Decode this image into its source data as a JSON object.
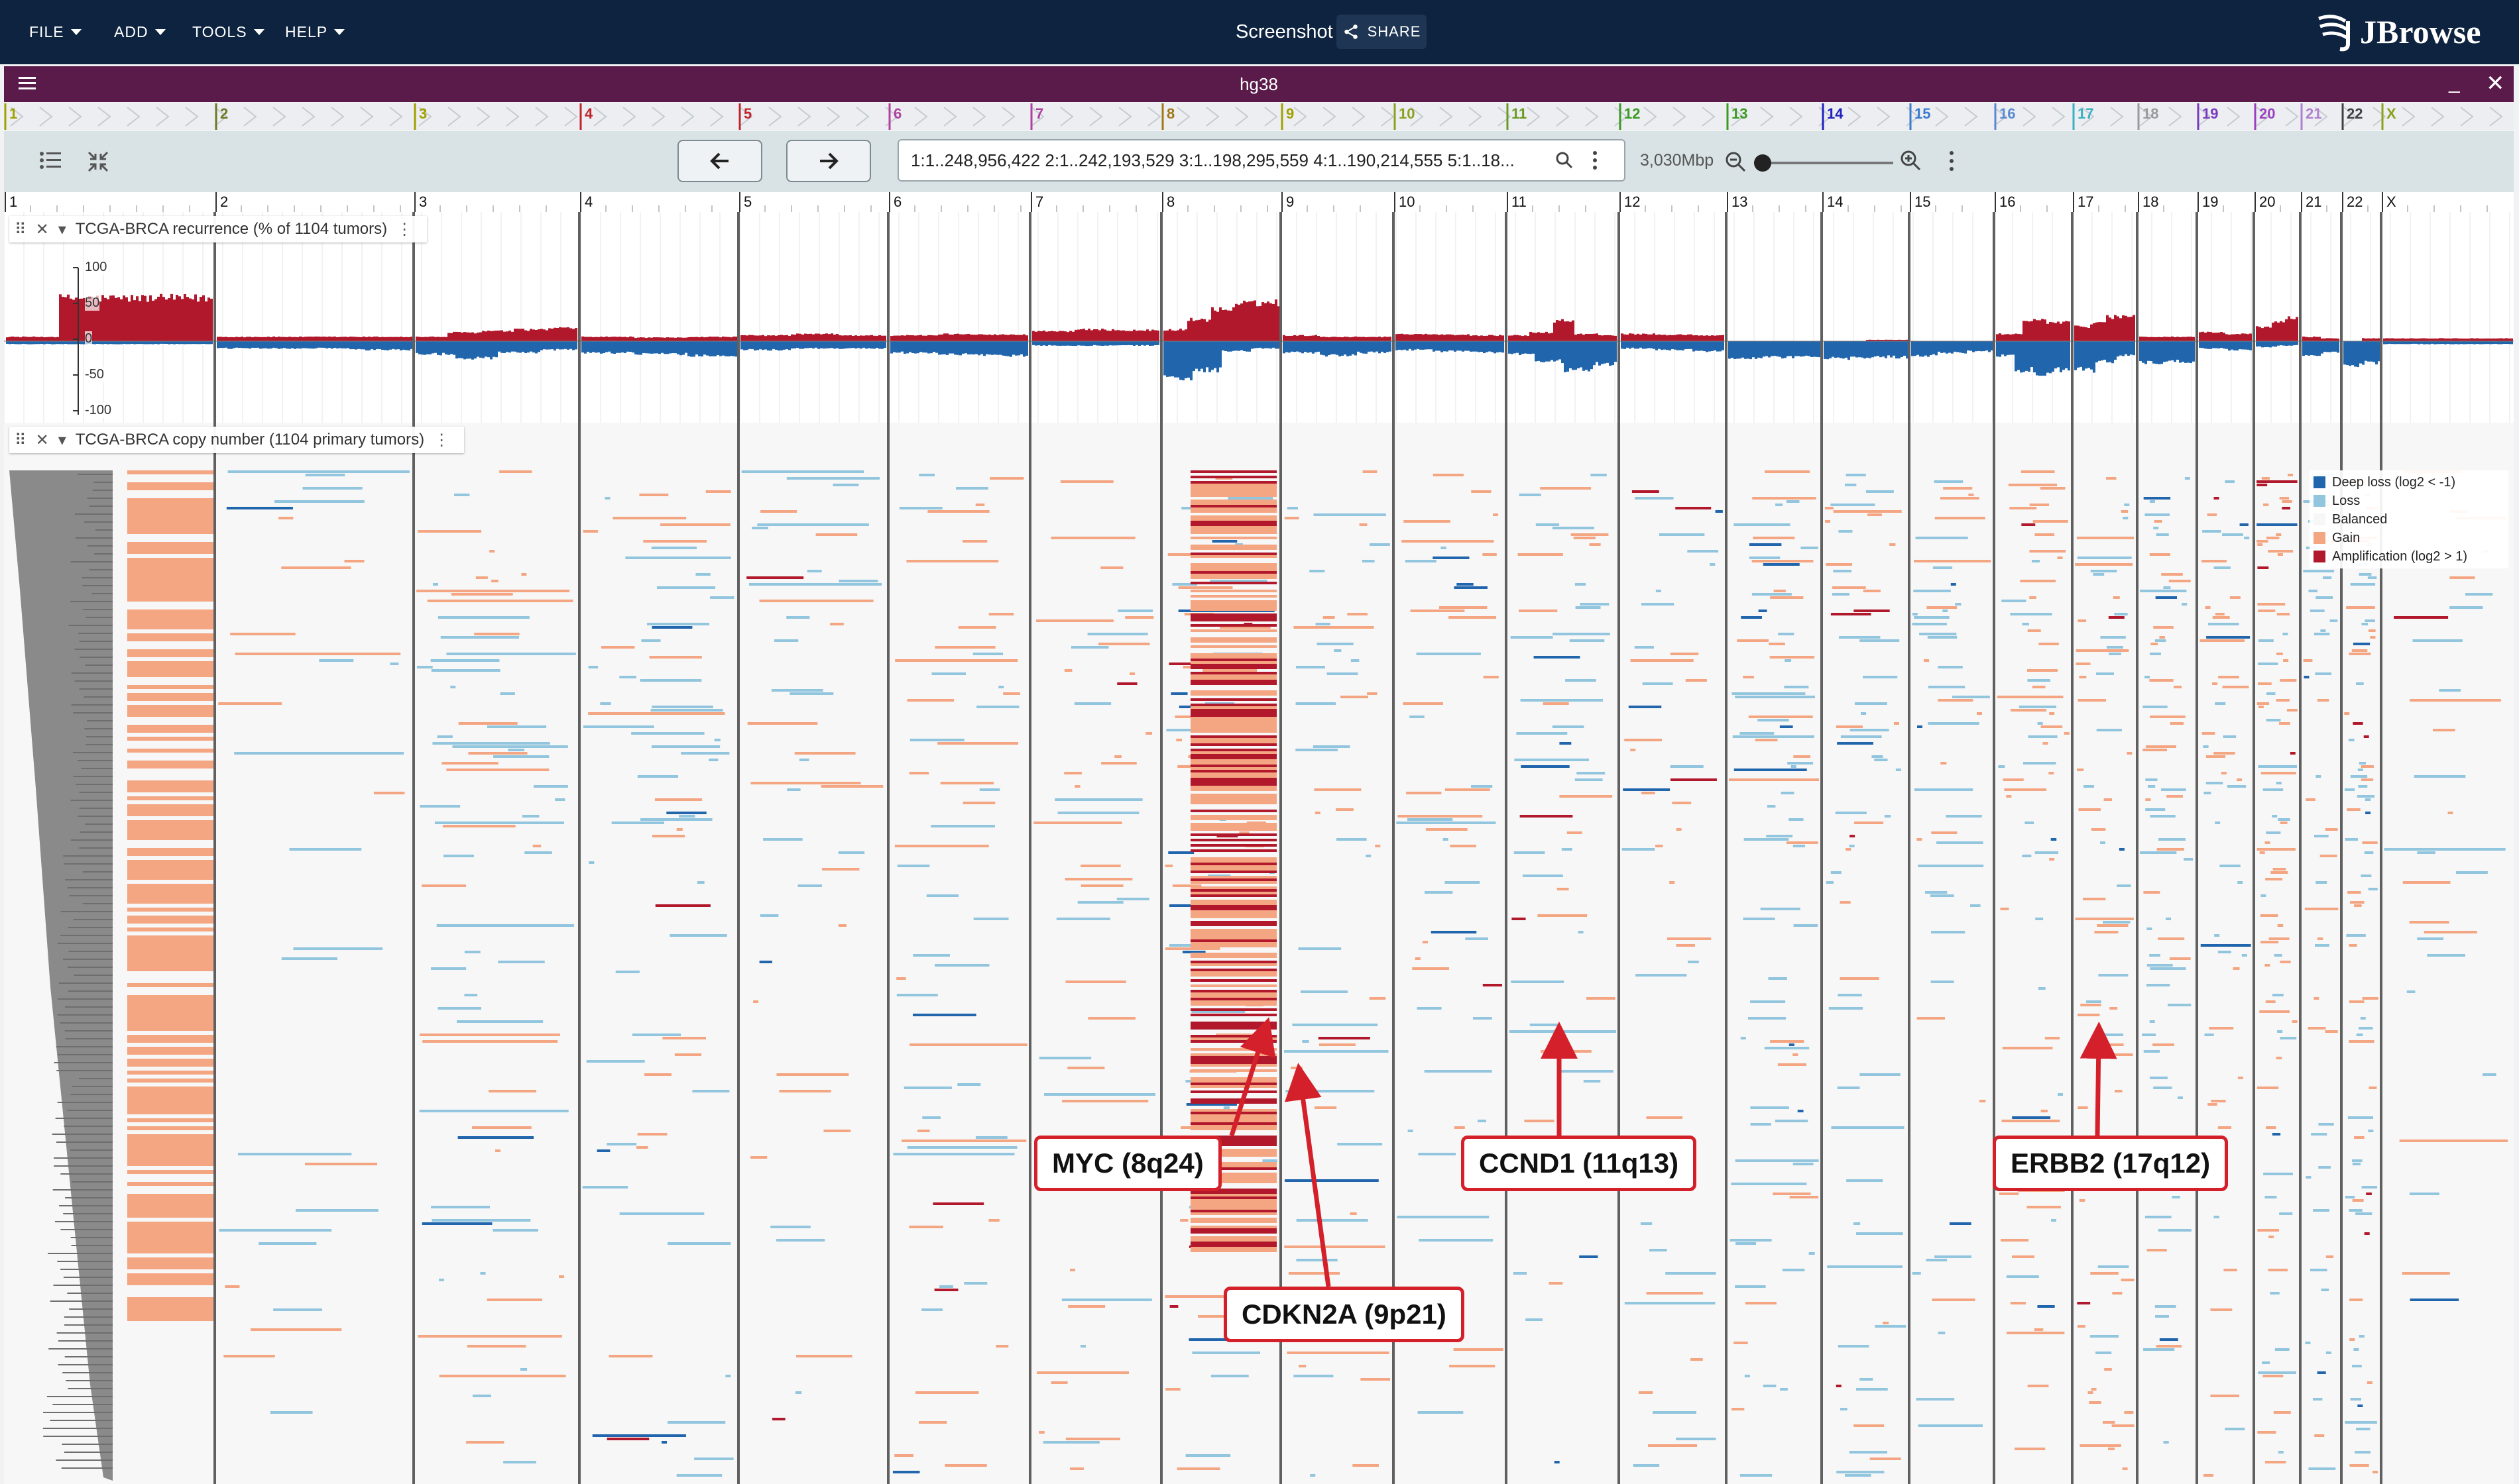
{
  "menubar": {
    "items": [
      "FILE",
      "ADD",
      "TOOLS",
      "HELP"
    ],
    "screenshot_label": "Screenshot",
    "share_label": "SHARE",
    "logo_text": "JBrowse"
  },
  "view": {
    "title": "hg38"
  },
  "toolbar": {
    "locstring": "1:1..248,956,422 2:1..242,193,529 3:1..198,295,559 4:1..190,214,555 5:1..18...",
    "bp_label": "3,030Mbp",
    "zoom_level": 0.05
  },
  "chromosomes": [
    "1",
    "2",
    "3",
    "4",
    "5",
    "6",
    "7",
    "8",
    "9",
    "10",
    "11",
    "12",
    "13",
    "14",
    "15",
    "16",
    "17",
    "18",
    "19",
    "20",
    "21",
    "22",
    "X"
  ],
  "chromosome_colors": [
    "#a0a000",
    "#6a7a22",
    "#a0a000",
    "#c0242c",
    "#c0242c",
    "#b040a0",
    "#b040a0",
    "#a0781a",
    "#a0a000",
    "#8ca020",
    "#6a9a22",
    "#3a9a22",
    "#3a9a22",
    "#2020c0",
    "#3a7ad0",
    "#5a8ad0",
    "#3ab0c0",
    "#9a9a9a",
    "#7a3ac0",
    "#9a40c0",
    "#b080d0",
    "#404040",
    "#8ca020"
  ],
  "tracks": {
    "recurrence": {
      "label": "TCGA-BRCA recurrence (% of 1104 tumors)",
      "y_ticks": [
        "100",
        "50",
        "0",
        "-50",
        "-100"
      ]
    },
    "copy_number": {
      "label": "TCGA-BRCA copy number (1104 primary tumors)"
    }
  },
  "legend": {
    "items": [
      {
        "label": "Deep loss (log2 < -1)",
        "color": "#2166ac"
      },
      {
        "label": "Loss",
        "color": "#92c5de"
      },
      {
        "label": "Balanced",
        "color": "#f7f7f7"
      },
      {
        "label": "Gain",
        "color": "#f4a582"
      },
      {
        "label": "Amplification (log2 > 1)",
        "color": "#b2182b"
      }
    ]
  },
  "annotations": [
    {
      "label": "MYC (8q24)"
    },
    {
      "label": "CDKN2A (9p21)"
    },
    {
      "label": "CCND1 (11q13)"
    },
    {
      "label": "ERBB2 (17q12)"
    }
  ],
  "colors": {
    "app_bar": "#0d233f",
    "view_header": "#5a1a4a",
    "gain": "#b2182b",
    "loss": "#2166ac",
    "callout": "#d4202a"
  }
}
